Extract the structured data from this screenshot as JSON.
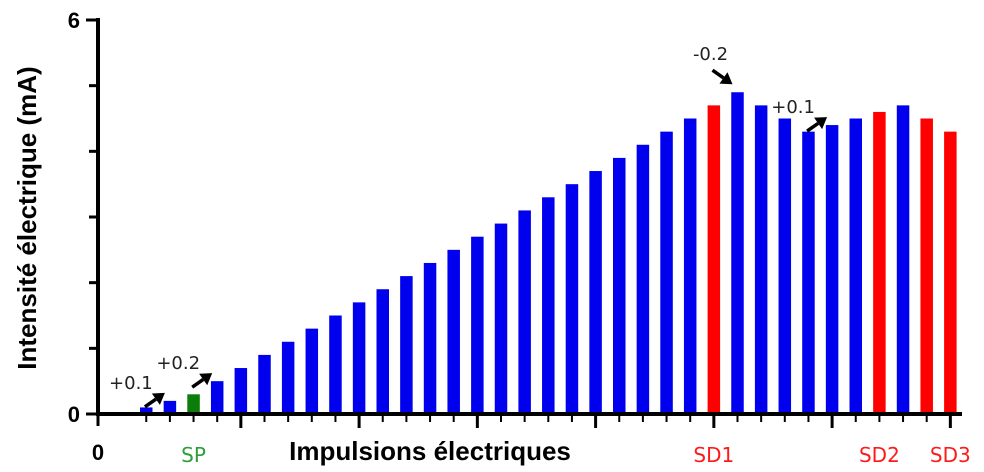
{
  "chart_data": {
    "type": "bar",
    "title": "",
    "xlabel": "Impulsions électriques",
    "ylabel": "Intensité électrique (mA)",
    "ylim": [
      0,
      6
    ],
    "y_ticks": [
      "0",
      "6"
    ],
    "x_origin_label": "0",
    "values": [
      0.1,
      0.2,
      0.3,
      0.5,
      0.7,
      0.9,
      1.1,
      1.3,
      1.5,
      1.7,
      1.9,
      2.1,
      2.3,
      2.5,
      2.7,
      2.9,
      3.1,
      3.3,
      3.5,
      3.7,
      3.9,
      4.1,
      4.3,
      4.5,
      4.7,
      4.9,
      4.7,
      4.5,
      4.3,
      4.4,
      4.5,
      4.6,
      4.7,
      4.5,
      4.3
    ],
    "colors": [
      "blue",
      "blue",
      "green",
      "blue",
      "blue",
      "blue",
      "blue",
      "blue",
      "blue",
      "blue",
      "blue",
      "blue",
      "blue",
      "blue",
      "blue",
      "blue",
      "blue",
      "blue",
      "blue",
      "blue",
      "blue",
      "blue",
      "blue",
      "blue",
      "red",
      "blue",
      "blue",
      "blue",
      "blue",
      "blue",
      "blue",
      "red",
      "blue",
      "red",
      "red"
    ],
    "palette": {
      "blue": "#0000ee",
      "green": "#0a7d0a",
      "red": "#ff0000"
    },
    "category_labels": [
      {
        "text": "SP",
        "index": 2,
        "color": "#2e9e3a"
      },
      {
        "text": "SD1",
        "index": 24,
        "color": "#ff1a1a"
      },
      {
        "text": "SD2",
        "index": 31,
        "color": "#ff1a1a"
      },
      {
        "text": "SD3",
        "index": 34,
        "color": "#ff1a1a"
      }
    ],
    "annotations": [
      {
        "text": "+0.1",
        "index": 1
      },
      {
        "text": "+0.2",
        "index": 3
      },
      {
        "text": "-0.2",
        "index": 25
      },
      {
        "text": "+0.1",
        "index": 29
      }
    ],
    "grid": false,
    "legend": "none"
  }
}
